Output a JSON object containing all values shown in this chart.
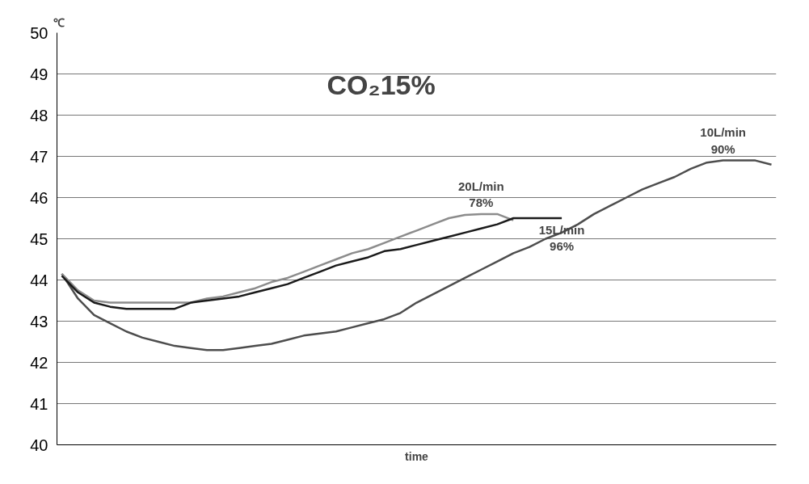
{
  "chart_data": {
    "type": "line",
    "title": "CO₂15%",
    "ylabel": "℃",
    "xlabel": "time",
    "categories": [
      null,
      null,
      null,
      null,
      null,
      null,
      null,
      null,
      null,
      null,
      null,
      null,
      null,
      null,
      null,
      null,
      null,
      null,
      null,
      null,
      null,
      null,
      null,
      null,
      null,
      null,
      null,
      null,
      null,
      null,
      null,
      null,
      null,
      null,
      null,
      null,
      null,
      null,
      null,
      null,
      null,
      null,
      null,
      null,
      null
    ],
    "series": [
      {
        "color": "#4d4d4d",
        "values": [
          44.15,
          43.55,
          43.15,
          42.95,
          42.75,
          42.6,
          42.5,
          42.4,
          42.35,
          42.3,
          42.3,
          42.35,
          42.4,
          42.45,
          42.55,
          42.65,
          42.7,
          42.75,
          42.85,
          42.95,
          43.05,
          43.2,
          43.45,
          43.65,
          43.85,
          44.05,
          44.25,
          44.45,
          44.65,
          44.8,
          45.0,
          45.15,
          45.35,
          45.6,
          45.8,
          46.0,
          46.2,
          46.35,
          46.5,
          46.7,
          46.85,
          46.9,
          46.9,
          46.9,
          46.8
        ]
      },
      {
        "color": "#8c8c8c",
        "values": [
          44.15,
          43.75,
          43.5,
          43.45,
          43.45,
          43.45,
          43.45,
          43.45,
          43.45,
          43.55,
          43.6,
          43.7,
          43.8,
          43.95,
          44.05,
          44.2,
          44.35,
          44.5,
          44.65,
          44.75,
          44.9,
          45.05,
          45.2,
          45.35,
          45.5,
          45.58,
          45.6,
          45.6,
          45.45,
          null,
          null,
          null,
          null,
          null,
          null,
          null,
          null,
          null,
          null,
          null,
          null,
          null,
          null,
          null,
          null
        ]
      },
      {
        "color": "#1a1a1a",
        "values": [
          44.1,
          43.7,
          43.45,
          43.35,
          43.3,
          43.3,
          43.3,
          43.3,
          43.45,
          43.5,
          43.55,
          43.6,
          43.7,
          43.8,
          43.9,
          44.05,
          44.2,
          44.35,
          44.45,
          44.55,
          44.7,
          44.75,
          44.85,
          44.95,
          45.05,
          45.15,
          45.25,
          45.35,
          45.5,
          45.5,
          45.5,
          45.5,
          null,
          null,
          null,
          null,
          null,
          null,
          null,
          null,
          null,
          null,
          null,
          null,
          null
        ]
      }
    ],
    "annotations": [
      "10L/min\n90%",
      "20L/min\n78%",
      "15L/min\n96%"
    ],
    "ylim": [
      40,
      50
    ],
    "yticks": [
      40,
      41,
      42,
      43,
      44,
      45,
      46,
      47,
      48,
      49,
      50
    ],
    "grid": "y",
    "tick_labels": "y",
    "marker": "none",
    "line_style": "solid"
  }
}
